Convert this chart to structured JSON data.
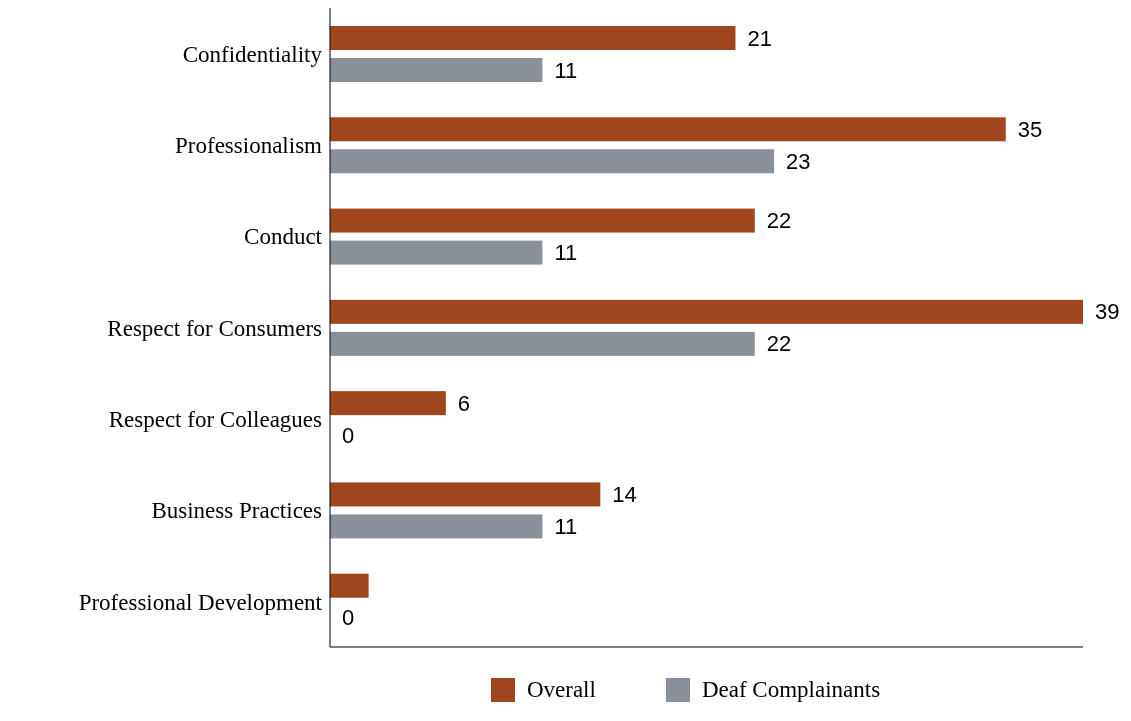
{
  "chart_data": {
    "type": "bar",
    "orientation": "horizontal",
    "categories": [
      "Confidentiality",
      "Professionalism",
      "Conduct",
      "Respect for Consumers",
      "Respect for Colleagues",
      "Business Practices",
      "Professional Development"
    ],
    "series": [
      {
        "name": "Overall",
        "color": "#a0461e",
        "values": [
          21,
          35,
          22,
          39,
          6,
          14,
          2
        ],
        "value_labels": [
          "21",
          "35",
          "22",
          "39",
          "6",
          "14",
          null
        ]
      },
      {
        "name": "Deaf Complainants",
        "color": "#8a9099",
        "values": [
          11,
          23,
          11,
          22,
          0,
          11,
          0
        ],
        "value_labels": [
          "11",
          "23",
          "11",
          "22",
          "0",
          "11",
          "0"
        ]
      }
    ],
    "xlim": [
      0,
      39
    ],
    "tick_labels": "y",
    "grid": false,
    "legend": "bottom"
  }
}
